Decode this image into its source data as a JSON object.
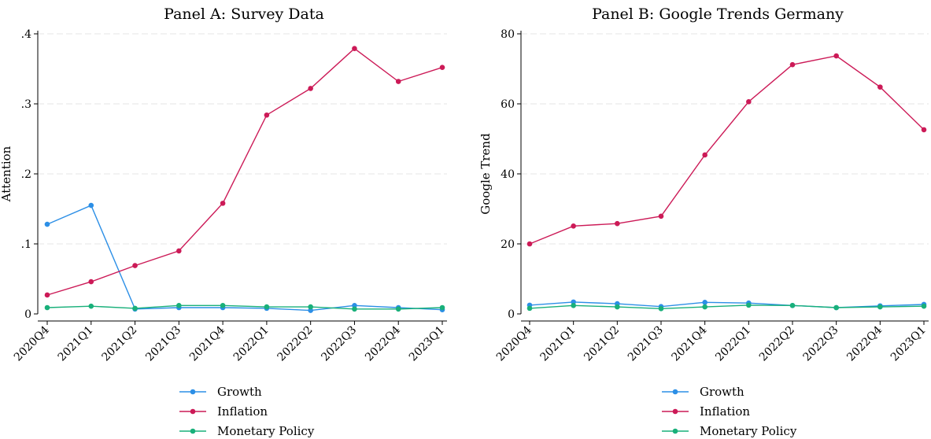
{
  "colors": {
    "growth": "#2c8fe6",
    "inflation": "#cc1a57",
    "monetary": "#19b07a",
    "grid": "#e6e6e6",
    "axis": "#000000"
  },
  "chart_data": [
    {
      "type": "line",
      "title": "Panel A: Survey Data",
      "xlabel": "",
      "ylabel": "Attention",
      "categories": [
        "2020Q4",
        "2021Q1",
        "2021Q2",
        "2021Q3",
        "2021Q4",
        "2022Q1",
        "2022Q2",
        "2022Q3",
        "2022Q4",
        "2023Q1"
      ],
      "ylim": [
        0,
        0.4
      ],
      "yticks": [
        0,
        0.1,
        0.2,
        0.3,
        0.4
      ],
      "ytick_labels": [
        "0",
        ".1",
        ".2",
        ".3",
        ".4"
      ],
      "grid": true,
      "legend_position": "bottom",
      "series": [
        {
          "name": "Growth",
          "values": [
            0.128,
            0.155,
            0.007,
            0.009,
            0.009,
            0.008,
            0.005,
            0.012,
            0.009,
            0.006
          ]
        },
        {
          "name": "Inflation",
          "values": [
            0.027,
            0.046,
            0.069,
            0.09,
            0.158,
            0.284,
            0.322,
            0.379,
            0.332,
            0.352
          ]
        },
        {
          "name": "Monetary Policy",
          "values": [
            0.009,
            0.011,
            0.008,
            0.012,
            0.012,
            0.01,
            0.01,
            0.007,
            0.007,
            0.009
          ]
        }
      ]
    },
    {
      "type": "line",
      "title": "Panel B: Google Trends Germany",
      "xlabel": "",
      "ylabel": "Google Trend",
      "categories": [
        "2020Q4",
        "2021Q1",
        "2021Q2",
        "2021Q3",
        "2021Q4",
        "2022Q1",
        "2022Q2",
        "2022Q3",
        "2022Q4",
        "2023Q1"
      ],
      "ylim": [
        0,
        80
      ],
      "yticks": [
        0,
        20,
        40,
        60,
        80
      ],
      "ytick_labels": [
        "0",
        "20",
        "40",
        "60",
        "80"
      ],
      "grid": true,
      "legend_position": "bottom",
      "series": [
        {
          "name": "Growth",
          "values": [
            2.5,
            3.4,
            2.9,
            2.1,
            3.3,
            3.1,
            2.4,
            1.8,
            2.3,
            2.7
          ]
        },
        {
          "name": "Inflation",
          "values": [
            20.0,
            25.1,
            25.8,
            27.9,
            45.4,
            60.6,
            71.2,
            73.7,
            64.8,
            52.6
          ]
        },
        {
          "name": "Monetary Policy",
          "values": [
            1.6,
            2.4,
            2.0,
            1.5,
            2.0,
            2.5,
            2.4,
            1.8,
            2.0,
            2.2
          ]
        }
      ]
    }
  ]
}
